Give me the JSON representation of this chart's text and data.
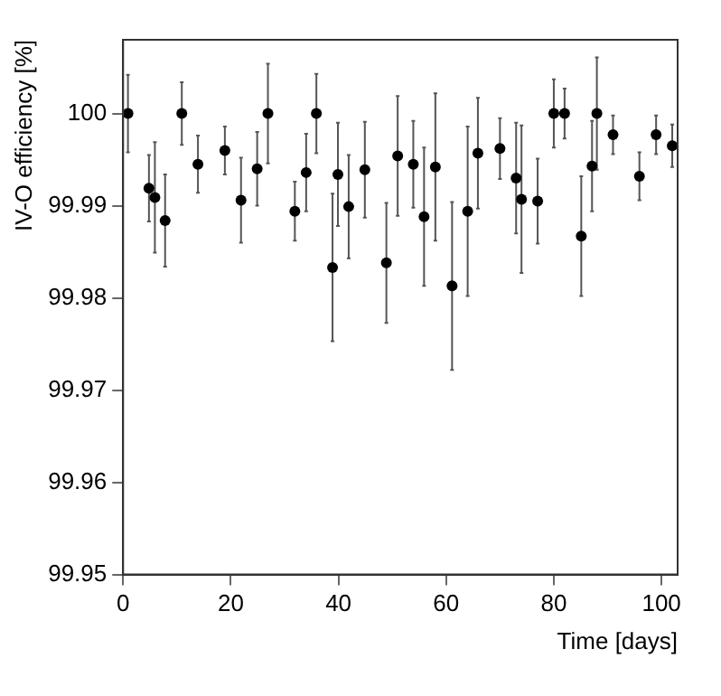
{
  "chart_data": {
    "type": "scatter",
    "xlabel": "Time [days]",
    "ylabel": "IV-O efficiency [%]",
    "x": [
      0.9,
      4.8,
      5.9,
      7.8,
      10.9,
      13.9,
      18.9,
      21.9,
      24.9,
      26.9,
      31.9,
      34,
      35.9,
      38.9,
      39.9,
      41.9,
      44.9,
      48.9,
      51,
      53.9,
      55.9,
      58,
      61.1,
      64,
      65.9,
      70,
      73,
      74,
      77,
      80,
      82,
      85.1,
      87.1,
      88,
      91,
      95.9,
      99,
      102
    ],
    "series": [
      {
        "color": "#000000",
        "values": [
          100,
          99.9919,
          99.9909,
          99.9884,
          100,
          99.9945,
          99.996,
          99.9906,
          99.994,
          100,
          99.9894,
          99.9936,
          100,
          99.9833,
          99.9934,
          99.9899,
          99.9939,
          99.9838,
          99.9954,
          99.9945,
          99.9888,
          99.9942,
          99.9813,
          99.9894,
          99.9957,
          99.9962,
          99.993,
          99.9907,
          99.9905,
          100,
          100,
          99.9867,
          99.9943,
          100,
          99.9977,
          99.9932,
          99.9977,
          99.9965
        ],
        "errors": [
          0.0042,
          0.0036,
          0.006,
          0.005,
          0.0034,
          0.0031,
          0.0026,
          0.0046,
          0.004,
          0.0054,
          0.0032,
          0.0042,
          0.0043,
          0.008,
          0.0056,
          0.0056,
          0.0052,
          0.0065,
          0.0065,
          0.0047,
          0.0075,
          0.008,
          0.0091,
          0.0092,
          0.006,
          0.0033,
          0.006,
          0.008,
          0.0046,
          0.0037,
          0.0027,
          0.0065,
          0.0049,
          0.0061,
          0.0021,
          0.0026,
          0.0021,
          0.0023
        ]
      }
    ],
    "xlim": [
      0,
      103
    ],
    "xticks": [
      0,
      20,
      40,
      60,
      80,
      100
    ],
    "ylim": [
      99.95,
      100.008
    ],
    "yticks": [
      99.95,
      99.96,
      99.97,
      99.98,
      99.99,
      100
    ],
    "grid": false,
    "legend": false,
    "marker": "circle"
  }
}
